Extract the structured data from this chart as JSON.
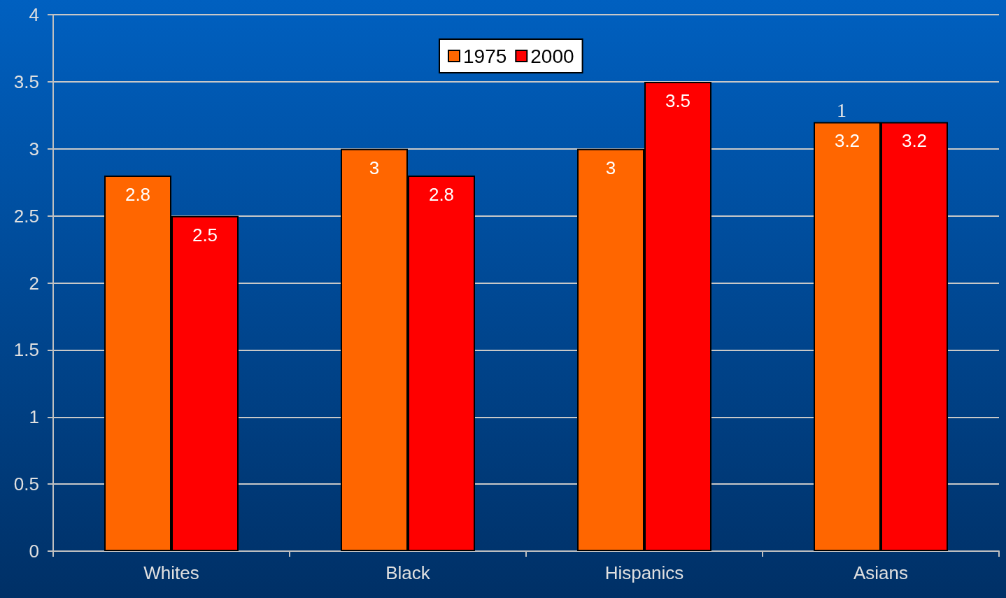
{
  "chart_data": {
    "type": "bar",
    "categories": [
      "Whites",
      "Black",
      "Hispanics",
      "Asians"
    ],
    "series": [
      {
        "name": "1975",
        "color": "#ff6600",
        "values": [
          2.8,
          3,
          3,
          3.2
        ]
      },
      {
        "name": "2000",
        "color": "#ff0000",
        "values": [
          2.5,
          2.8,
          3.5,
          3.2
        ]
      }
    ],
    "ylim": [
      0,
      4
    ],
    "yticks": [
      0,
      0.5,
      1,
      1.5,
      2,
      2.5,
      3,
      3.5,
      4
    ],
    "grid": "y",
    "legend": "top",
    "data_labels": true,
    "annotations": [
      "1"
    ]
  }
}
